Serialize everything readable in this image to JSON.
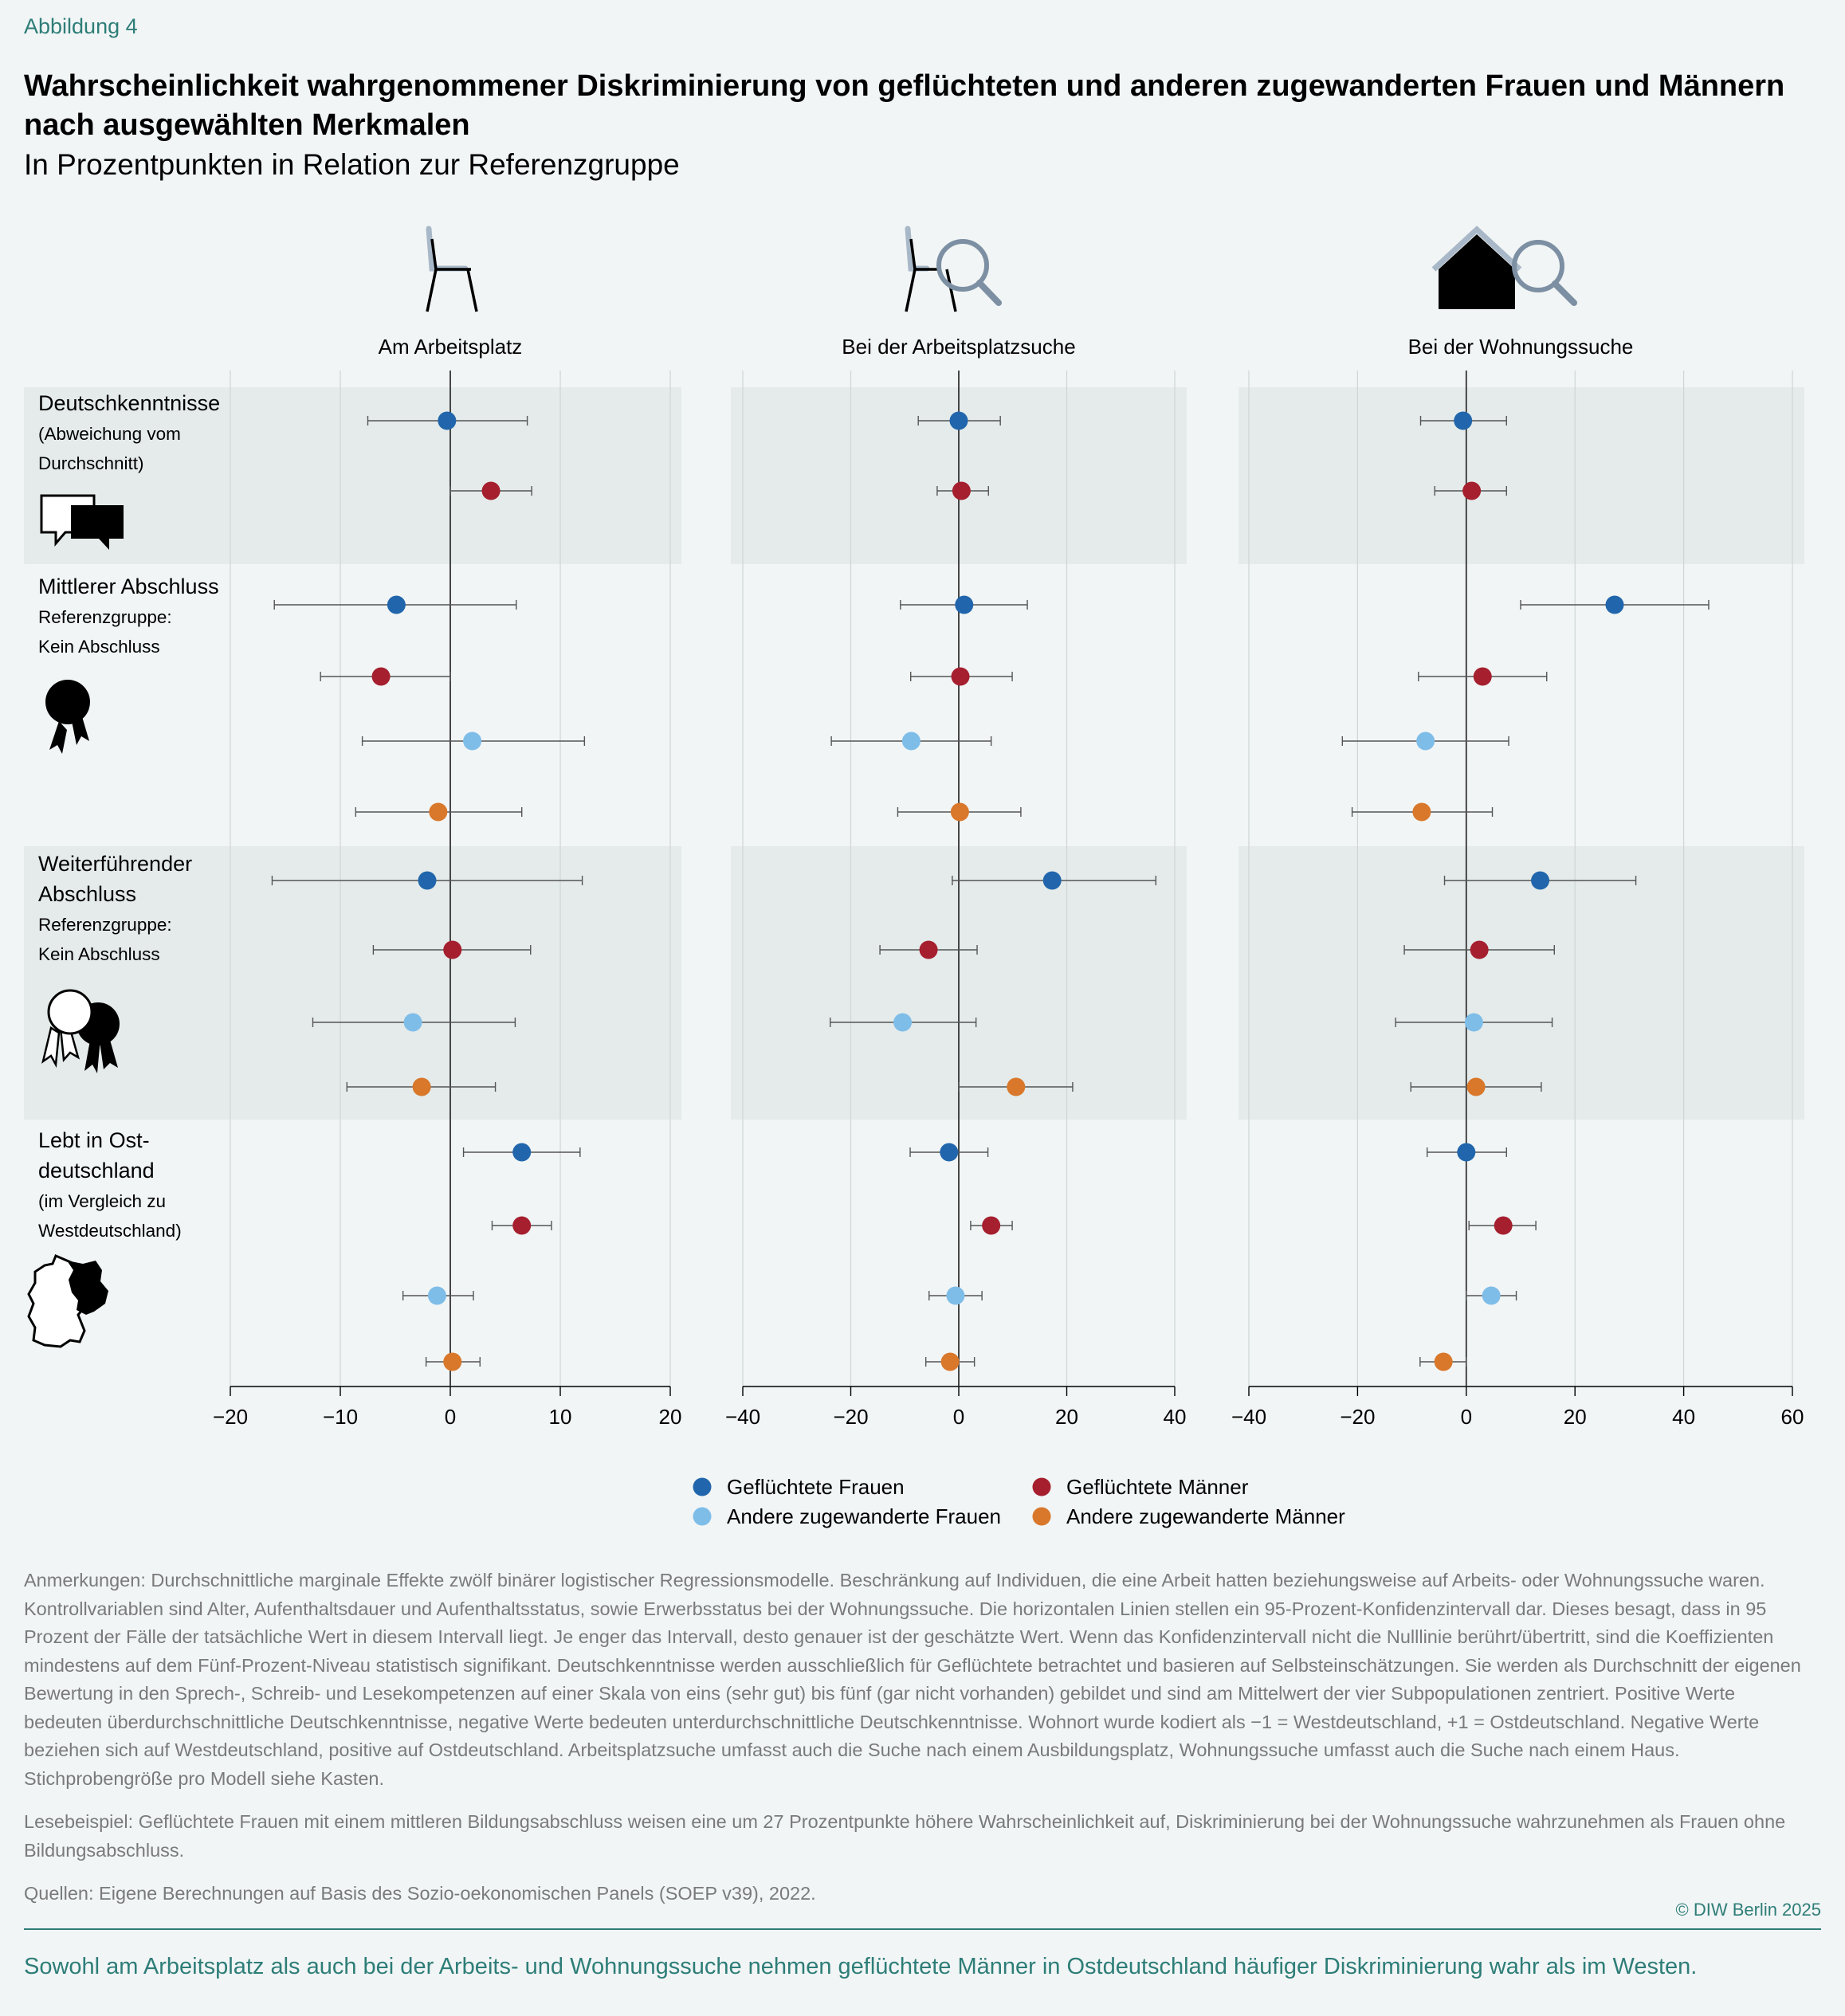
{
  "header": {
    "label": "Abbildung 4",
    "title": "Wahrscheinlichkeit wahrgenommener Diskriminierung von geflüchteten und anderen zugewanderten Frauen und Männern nach ausgewählten Merkmalen",
    "subtitle": "In Prozentpunkten in Relation zur Referenzgruppe"
  },
  "colors": {
    "fluechtete_frauen": "#2166ac",
    "fluechtete_maenner": "#a51f2f",
    "andere_frauen": "#7fbde9",
    "andere_maenner": "#d9772a",
    "band": "#e4ebea",
    "accent": "#2e7d78"
  },
  "row_groups": [
    {
      "line1": "Deutschkenntnisse",
      "line2": "",
      "line3": "(Abweichung vom",
      "line4": "Durchschnitt)",
      "icon": "speech-bubbles-icon"
    },
    {
      "line1": "Mittlerer Abschluss",
      "line2": "",
      "line3": "Referenzgruppe:",
      "line4": "Kein Abschluss",
      "icon": "rosette-icon"
    },
    {
      "line1": "Weiterführender",
      "line2": "Abschluss",
      "line3": "Referenzgruppe:",
      "line4": "Kein Abschluss",
      "icon": "two-rosettes-icon"
    },
    {
      "line1": "Lebt in Ost-",
      "line2": "deutschland",
      "line3": "(im Vergleich zu",
      "line4": "Westdeutschland)",
      "icon": "germany-map-icon"
    }
  ],
  "chart_data": [
    {
      "type": "scatter",
      "title": "Am Arbeitsplatz",
      "icon": "chair-icon",
      "xlim": [
        -20,
        20
      ],
      "xticks": [
        -20,
        -10,
        0,
        10,
        20
      ],
      "tick_labels": [
        "−20",
        "−10",
        "0",
        "10",
        "20"
      ],
      "series": [
        {
          "name": "Geflüchtete Frauen",
          "values": [
            -0.3,
            -4.9,
            -2.1,
            6.5
          ],
          "ci_low": [
            -7.5,
            -16,
            -16.2,
            1.2
          ],
          "ci_high": [
            7,
            6,
            12,
            11.8
          ]
        },
        {
          "name": "Geflüchtete Männer",
          "values": [
            3.7,
            -6.3,
            0.2,
            6.5
          ],
          "ci_low": [
            0,
            -11.8,
            -7,
            3.8
          ],
          "ci_high": [
            7.4,
            0,
            7.3,
            9.2
          ]
        },
        {
          "name": "Andere zugewanderte Frauen",
          "values": [
            null,
            2,
            -3.4,
            -1.2
          ],
          "ci_low": [
            null,
            -8,
            -12.5,
            -4.3
          ],
          "ci_high": [
            null,
            12.2,
            5.9,
            2.1
          ]
        },
        {
          "name": "Andere zugewanderte Männer",
          "values": [
            null,
            -1.1,
            -2.6,
            0.2
          ],
          "ci_low": [
            null,
            -8.6,
            -9.4,
            -2.2
          ],
          "ci_high": [
            null,
            6.5,
            4.1,
            2.7
          ]
        }
      ]
    },
    {
      "type": "scatter",
      "title": "Bei der Arbeitsplatzsuche",
      "icon": "chair-search-icon",
      "xlim": [
        -40,
        40
      ],
      "xticks": [
        -40,
        -20,
        0,
        20,
        40
      ],
      "tick_labels": [
        "−40",
        "−20",
        "0",
        "20",
        "40"
      ],
      "series": [
        {
          "name": "Geflüchtete Frauen",
          "values": [
            0,
            1,
            17.3,
            -1.8
          ],
          "ci_low": [
            -7.5,
            -10.8,
            -1.2,
            -9
          ],
          "ci_high": [
            7.7,
            12.7,
            36.5,
            5.4
          ]
        },
        {
          "name": "Geflüchtete Männer",
          "values": [
            0.5,
            0.3,
            -5.6,
            6
          ],
          "ci_low": [
            -4,
            -8.9,
            -14.6,
            2.2
          ],
          "ci_high": [
            5.5,
            9.9,
            3.4,
            9.9
          ]
        },
        {
          "name": "Andere zugewanderte Frauen",
          "values": [
            null,
            -8.8,
            -10.4,
            -0.6
          ],
          "ci_low": [
            null,
            -23.6,
            -23.8,
            -5.5
          ],
          "ci_high": [
            null,
            6,
            3.2,
            4.3
          ]
        },
        {
          "name": "Andere zugewanderte Männer",
          "values": [
            null,
            0.2,
            10.6,
            -1.6
          ],
          "ci_low": [
            null,
            -11.3,
            0,
            -6.1
          ],
          "ci_high": [
            null,
            11.5,
            21.1,
            2.9
          ]
        }
      ]
    },
    {
      "type": "scatter",
      "title": "Bei der Wohnungssuche",
      "icon": "house-search-icon",
      "xlim": [
        -40,
        60
      ],
      "xticks": [
        -40,
        -20,
        0,
        20,
        40,
        60
      ],
      "tick_labels": [
        "−40",
        "−20",
        "0",
        "20",
        "40",
        "60"
      ],
      "series": [
        {
          "name": "Geflüchtete Frauen",
          "values": [
            -0.6,
            27.3,
            13.6,
            0
          ],
          "ci_low": [
            -8.4,
            10,
            -4,
            -7.2
          ],
          "ci_high": [
            7.4,
            44.6,
            31.2,
            7.4
          ]
        },
        {
          "name": "Geflüchtete Männer",
          "values": [
            1,
            3,
            2.4,
            6.8
          ],
          "ci_low": [
            -5.8,
            -8.8,
            -11.4,
            0.5
          ],
          "ci_high": [
            7.4,
            14.8,
            16.2,
            12.8
          ]
        },
        {
          "name": "Andere zugewanderte Frauen",
          "values": [
            null,
            -7.5,
            1.4,
            4.6
          ],
          "ci_low": [
            null,
            -22.8,
            -13,
            0
          ],
          "ci_high": [
            null,
            7.8,
            15.8,
            9.2
          ]
        },
        {
          "name": "Andere zugewanderte Männer",
          "values": [
            null,
            -8.2,
            1.8,
            -4.2
          ],
          "ci_low": [
            null,
            -21,
            -10.2,
            -8.5
          ],
          "ci_high": [
            null,
            4.8,
            13.8,
            0
          ]
        }
      ]
    }
  ],
  "legend": {
    "items": [
      {
        "label": "Geflüchtete Frauen"
      },
      {
        "label": "Geflüchtete Männer"
      },
      {
        "label": "Andere zugewanderte Frauen"
      },
      {
        "label": "Andere zugewanderte Männer"
      }
    ]
  },
  "notes": {
    "anmerkungen": "Anmerkungen: Durchschnittliche marginale Effekte zwölf binärer logistischer Regressionsmodelle. Beschränkung auf Individuen, die eine Arbeit hatten beziehungsweise auf Arbeits- oder Wohnungssuche waren. Kontrollvariablen sind Alter, Aufenthaltsdauer und Aufenthaltsstatus, sowie Erwerbsstatus bei der Wohnungssuche. Die horizontalen Linien stellen ein 95-Prozent-Konfidenzintervall dar. Dieses besagt, dass in 95 Prozent der Fälle der tatsächliche Wert in diesem Intervall liegt. Je enger das Intervall, desto genauer ist der geschätzte Wert. Wenn das Konfidenzintervall nicht die Nulllinie berührt/übertritt, sind die Koeffizienten mindestens auf dem Fünf-Prozent-Niveau statistisch signifikant. Deutschkenntnisse werden ausschließlich für Geflüchtete betrachtet und basieren auf Selbsteinschätzungen. Sie werden als Durchschnitt der eigenen Bewertung in den Sprech-, Schreib- und Lesekompetenzen auf einer Skala von eins (sehr gut) bis fünf (gar nicht vorhanden) gebildet und sind am Mittelwert der vier Subpopulationen zentriert. Positive Werte bedeuten überdurchschnittliche Deutschkenntnisse, negative Werte bedeuten unterdurchschnittliche Deutschkenntnisse. Wohnort wurde kodiert als −1 = Westdeutschland, +1 = Ostdeutschland. Negative Werte beziehen sich auf Westdeutschland, positive auf Ostdeutschland. Arbeitsplatzsuche umfasst auch die Suche nach einem Ausbildungsplatz, Wohnungssuche umfasst auch die Suche nach einem Haus. Stichprobengröße pro Modell siehe Kasten.",
    "lesebeispiel": "Lesebeispiel: Geflüchtete Frauen mit einem mittleren Bildungsabschluss weisen eine um 27 Prozentpunkte höhere Wahrscheinlichkeit auf, Diskriminierung bei der Wohnungssuche wahrzunehmen als Frauen ohne Bildungsabschluss.",
    "quellen": "Quellen: Eigene Berechnungen auf Basis des Sozio-oekonomischen Panels (SOEP v39), 2022."
  },
  "copyright": "© DIW Berlin 2025",
  "footer": "Sowohl am Arbeitsplatz als auch bei der Arbeits- und Wohnungssuche nehmen geflüchtete Männer in Ostdeutschland häufiger Diskriminierung wahr als im Westen."
}
